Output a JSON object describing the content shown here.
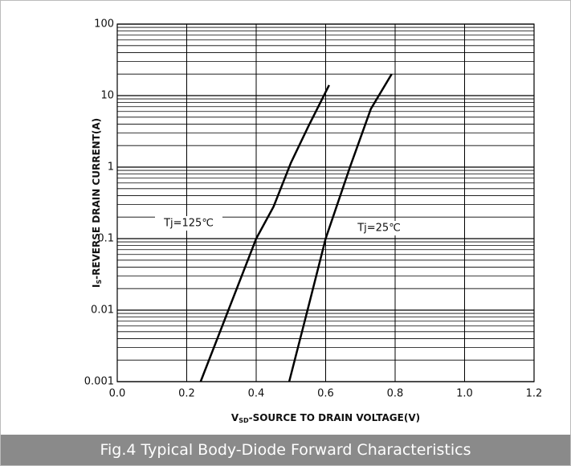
{
  "chart_data": {
    "type": "line",
    "caption": "Fig.4 Typical Body-Diode Forward Characteristics",
    "xlabel": {
      "main": "V",
      "sub": "SD",
      "rest": "-SOURCE TO DRAIN VOLTAGE(V)"
    },
    "ylabel": {
      "main": "I",
      "sub": "S",
      "rest": "-REVERSE DRAIN CURRENT(A)"
    },
    "xlim": [
      0,
      1.2
    ],
    "xticks": [
      {
        "value": 0,
        "label": "0.0"
      },
      0.2,
      0.4,
      0.6,
      0.8,
      {
        "value": 1,
        "label": "1.0"
      },
      1.2
    ],
    "ylim": [
      0.001,
      100
    ],
    "yticks": [
      0.001,
      0.01,
      0.1,
      1,
      10,
      100
    ],
    "yscale": "log",
    "grid": true,
    "minor_grid": true,
    "series": [
      {
        "name": "Tj=125℃",
        "color": "#000000",
        "x": [
          0.24,
          0.32,
          0.4,
          0.45,
          0.5,
          0.55,
          0.61
        ],
        "values": [
          0.001,
          0.01,
          0.1,
          0.28,
          1.15,
          3.7,
          14
        ]
      },
      {
        "name": "Tj=25℃",
        "color": "#000000",
        "x": [
          0.495,
          0.55,
          0.6,
          0.67,
          0.73,
          0.79
        ],
        "values": [
          0.001,
          0.011,
          0.1,
          1,
          6.5,
          20
        ]
      }
    ]
  }
}
